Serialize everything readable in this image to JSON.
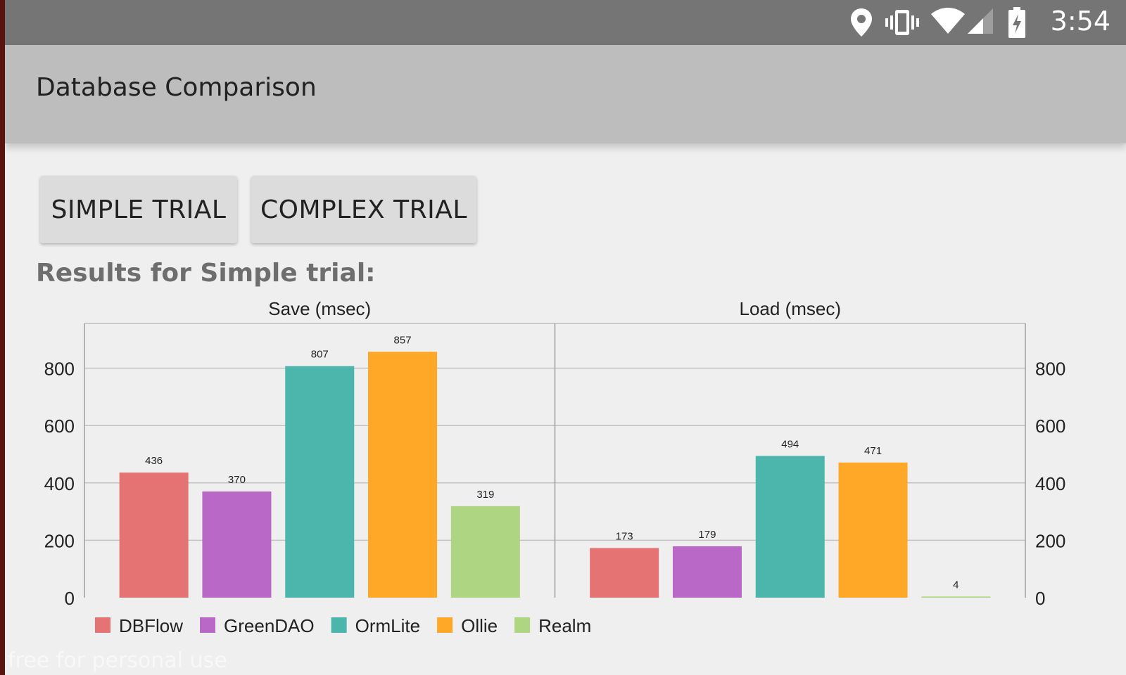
{
  "status_bar": {
    "time": "3:54",
    "icons": [
      "location-icon",
      "vibrate-icon",
      "wifi-icon",
      "cell-signal-icon",
      "battery-charging-icon"
    ]
  },
  "app_bar": {
    "title": "Database Comparison"
  },
  "buttons": {
    "simple": "SIMPLE TRIAL",
    "complex": "COMPLEX TRIAL"
  },
  "results_heading": "Results for Simple trial:",
  "watermark": "free for personal use",
  "chart_data": {
    "type": "bar",
    "ylim": [
      0,
      880
    ],
    "yticks": [
      0,
      200,
      400,
      600,
      800
    ],
    "grid": true,
    "legend_position": "bottom-left",
    "series_names": [
      "DBFlow",
      "GreenDAO",
      "OrmLite",
      "Ollie",
      "Realm"
    ],
    "colors": [
      "#e57373",
      "#ba68c8",
      "#4db6ac",
      "#ffa726",
      "#aed581"
    ],
    "panels": [
      {
        "title": "Save (msec)",
        "values": [
          436,
          370,
          807,
          857,
          319
        ]
      },
      {
        "title": "Load (msec)",
        "values": [
          173,
          179,
          494,
          471,
          4
        ]
      }
    ]
  }
}
